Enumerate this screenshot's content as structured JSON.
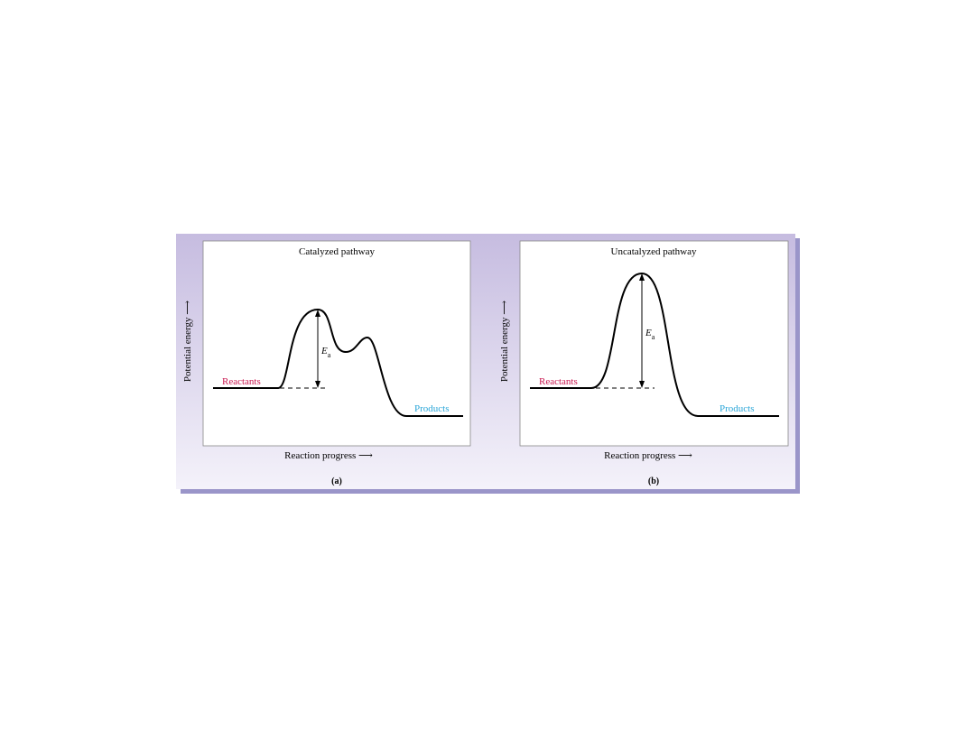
{
  "colors": {
    "reactants": "#c8174f",
    "products": "#2aa6d8",
    "panel_top": "#c6bce0",
    "panel_bottom": "#f4f2fa",
    "shadow": "#9a95c9"
  },
  "panels": [
    {
      "title": "Catalyzed pathway",
      "ylabel": "Potential energy",
      "xlabel": "Reaction progress",
      "caption": "(a)",
      "reactants": "Reactants",
      "products": "Products",
      "ea_label": "E",
      "ea_sub": "a"
    },
    {
      "title": "Uncatalyzed pathway",
      "ylabel": "Potential energy",
      "xlabel": "Reaction progress",
      "caption": "(b)",
      "reactants": "Reactants",
      "products": "Products",
      "ea_label": "E",
      "ea_sub": "a"
    }
  ]
}
